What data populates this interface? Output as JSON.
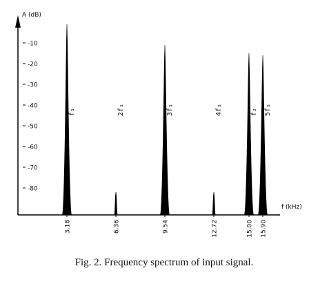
{
  "chart_data": {
    "type": "spectrum",
    "ylabel": "A (dB)",
    "xlabel": "f (kHz)",
    "caption": "Fig. 2.  Frequency spectrum of input signal.",
    "x": [
      3.18,
      6.36,
      9.54,
      12.72,
      15.0,
      15.9
    ],
    "series": [
      {
        "values": [
          -1,
          -82,
          -11,
          -82,
          -15,
          -16
        ],
        "color": "#000000"
      }
    ],
    "peak_labels": [
      "f₁",
      "2f₁",
      "3f₁",
      "4f₁",
      "f₂",
      "5f₁"
    ],
    "xlim": [
      0,
      17
    ],
    "ylim": [
      -93,
      0
    ],
    "xticks": [
      3.18,
      6.36,
      9.54,
      12.72,
      {
        "value": 15,
        "label": "15.00"
      },
      {
        "value": 15.9,
        "label": "15.90"
      }
    ],
    "yticks": [
      -10,
      -20,
      -30,
      -40,
      -50,
      -60,
      -70,
      -80
    ]
  }
}
